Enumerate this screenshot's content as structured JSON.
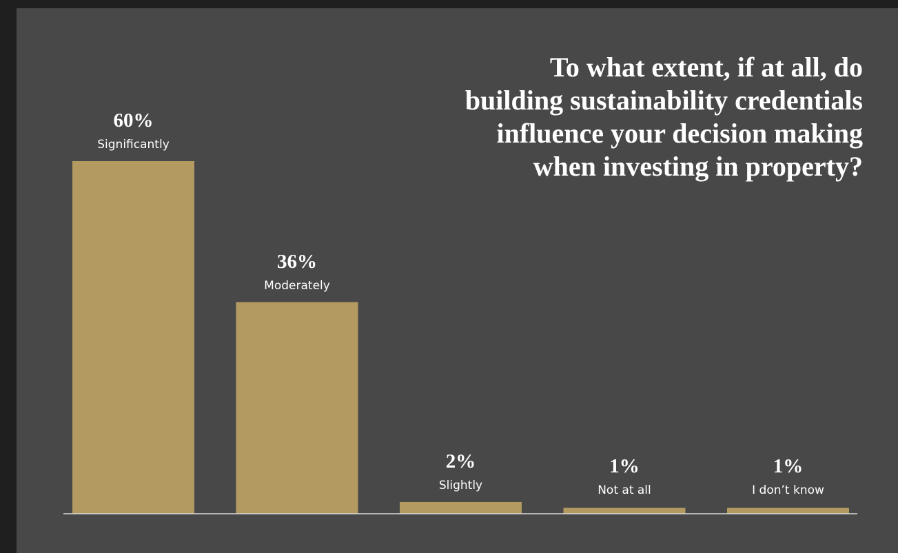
{
  "chart_data": {
    "type": "bar",
    "title_lines": [
      "To what extent, if at all, do",
      "building sustainability credentials",
      "influence your decision making",
      "when investing in property?"
    ],
    "categories": [
      "Significantly",
      "Moderately",
      "Slightly",
      "Not at all",
      "I don’t know"
    ],
    "values": [
      60,
      36,
      2,
      1,
      1
    ],
    "value_labels": [
      "60%",
      "36%",
      "2%",
      "1%",
      "1%"
    ],
    "unit": "%",
    "ylim": [
      0,
      60
    ],
    "grid": false,
    "legend": "none",
    "bar_color": "#b39a60",
    "background_color": "#484848",
    "axis_color": "#d9d9d9"
  }
}
